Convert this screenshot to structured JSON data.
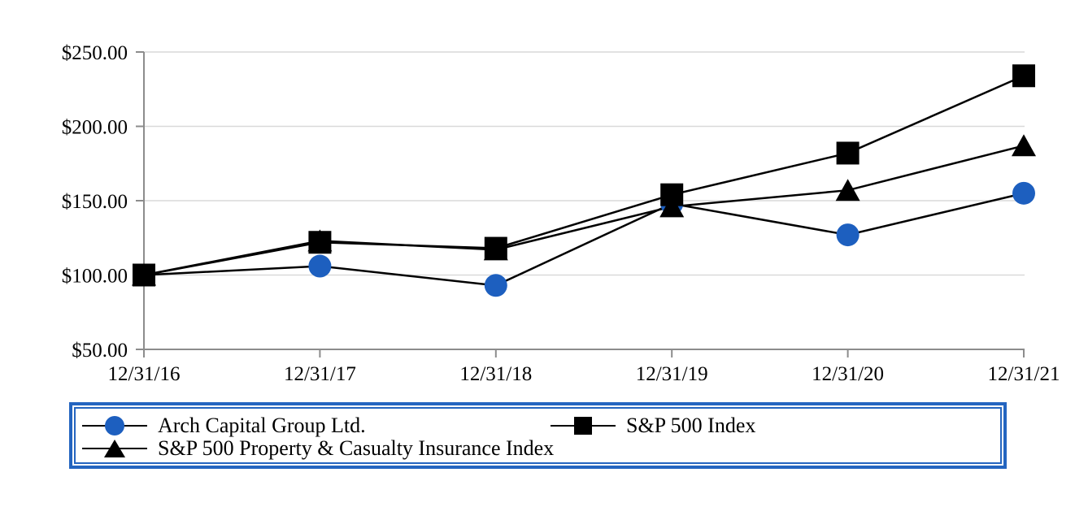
{
  "colors": {
    "arch_marker_blue": "#1d5fbf",
    "legend_border_blue": "#2465c0",
    "series_line_black": "#000000",
    "gridline_gray": "#d9d9d9",
    "axis_gray": "#8c8c8c",
    "background": "#ffffff"
  },
  "chart_data": {
    "type": "line",
    "title": "",
    "xlabel": "",
    "ylabel": "",
    "categories": [
      "12/31/16",
      "12/31/17",
      "12/31/18",
      "12/31/19",
      "12/31/20",
      "12/31/21"
    ],
    "series": [
      {
        "name": "Arch Capital Group Ltd.",
        "marker": "circle",
        "marker_color": "#1d5fbf",
        "values": [
          100,
          106,
          93,
          148,
          127,
          155
        ]
      },
      {
        "name": "S&P 500 Property & Casualty Insurance Index",
        "marker": "triangle",
        "marker_color": "#000000",
        "values": [
          100,
          123,
          117,
          146,
          157,
          187
        ]
      },
      {
        "name": "S&P 500 Index",
        "marker": "square",
        "marker_color": "#000000",
        "values": [
          100,
          122,
          118,
          154,
          182,
          234
        ]
      }
    ],
    "y_ticks": [
      {
        "value": 250,
        "label": "$250.00"
      },
      {
        "value": 200,
        "label": "$200.00"
      },
      {
        "value": 150,
        "label": "$150.00"
      },
      {
        "value": 100,
        "label": "$100.00"
      },
      {
        "value": 50,
        "label": "$50.00"
      }
    ],
    "ylim": [
      50,
      250
    ],
    "grid": true,
    "legend_position": "bottom"
  },
  "legend": {
    "items": [
      {
        "label": "Arch Capital Group Ltd.",
        "marker": "circle"
      },
      {
        "label": "S&P 500 Index",
        "marker": "square"
      },
      {
        "label": "S&P 500 Property & Casualty Insurance Index",
        "marker": "triangle"
      }
    ]
  }
}
